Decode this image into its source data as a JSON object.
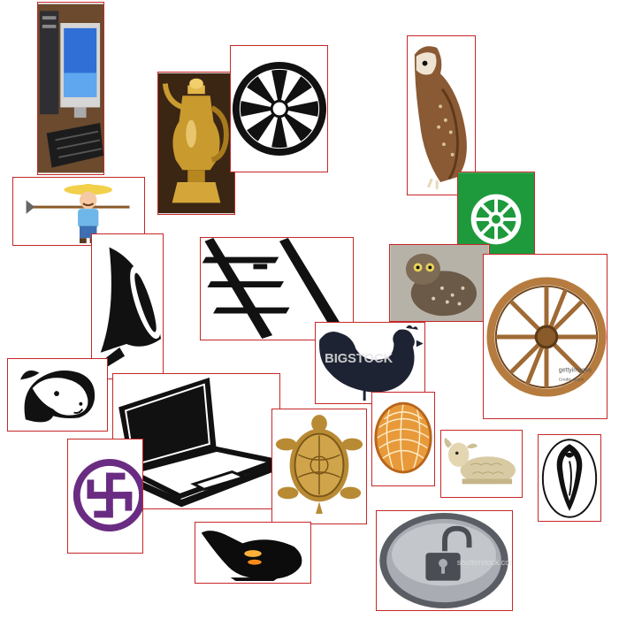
{
  "images": [
    {
      "id": "computer",
      "subject": "desktop computer"
    },
    {
      "id": "kettle",
      "subject": "brass kettle"
    },
    {
      "id": "wheel-bw",
      "subject": "black and white wheel"
    },
    {
      "id": "owl-brown",
      "subject": "barn owl"
    },
    {
      "id": "farmer",
      "subject": "farmer with hoe"
    },
    {
      "id": "wheel-green",
      "subject": "wheel on green"
    },
    {
      "id": "trumpet",
      "subject": "trumpet"
    },
    {
      "id": "ladder",
      "subject": "ladder"
    },
    {
      "id": "owl-small",
      "subject": "burrowing owl"
    },
    {
      "id": "cart-wheel",
      "subject": "wooden cart wheel"
    },
    {
      "id": "goat",
      "subject": "goat head"
    },
    {
      "id": "hen",
      "subject": "hen"
    },
    {
      "id": "laptop",
      "subject": "laptop"
    },
    {
      "id": "swastika",
      "subject": "swastika"
    },
    {
      "id": "tortoise",
      "subject": "metal tortoise"
    },
    {
      "id": "basket",
      "subject": "basket"
    },
    {
      "id": "lamb",
      "subject": "lamb"
    },
    {
      "id": "conch",
      "subject": "conch shell"
    },
    {
      "id": "lamp",
      "subject": "oil lamp"
    },
    {
      "id": "lock",
      "subject": "unlock button"
    }
  ],
  "watermarks": {
    "hen": "BIGSTOCK",
    "cart_wheel_1": "gettyimages",
    "cart_wheel_2": "Credit: alxpin",
    "lock": "shutterstock.com"
  },
  "colors": {
    "border": "#c62828",
    "green": "#1e9a3c",
    "brass": "#c99a2e",
    "purple": "#6a2c82",
    "wood": "#c08a4a"
  }
}
